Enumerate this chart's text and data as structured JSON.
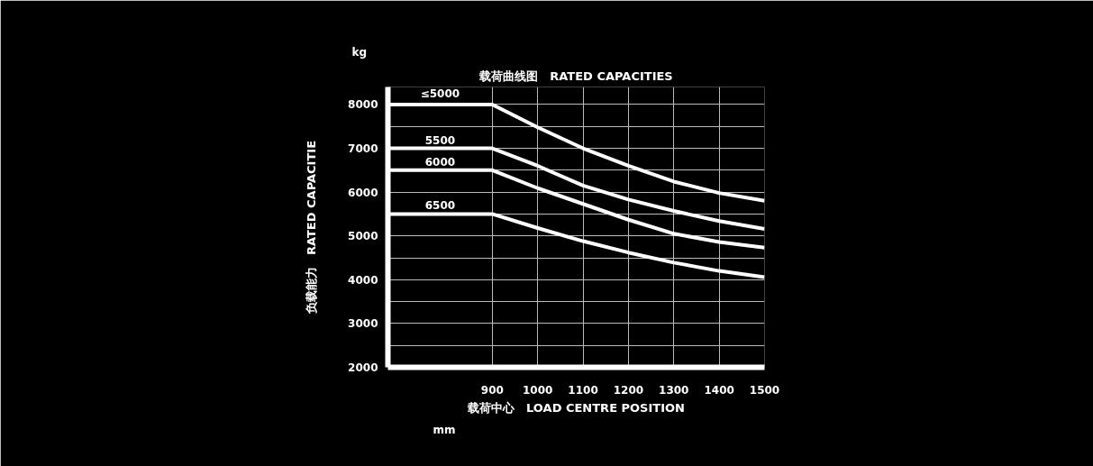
{
  "chart_data": {
    "type": "line",
    "title": "载荷曲线图　RATED CAPACITIES",
    "xlabel": "载荷中心　LOAD CENTRE POSITION",
    "ylabel": "负载能力　RATED CAPACITIE",
    "annotations": [
      "kg",
      "mm"
    ],
    "x": [
      670,
      900,
      1000,
      1100,
      1200,
      1300,
      1400,
      1500
    ],
    "series": [
      {
        "name": "≤5000",
        "color": "#ffffff",
        "values": [
          8000,
          8000,
          7480,
          7000,
          6600,
          6240,
          5980,
          5800
        ]
      },
      {
        "name": "5500",
        "color": "#ffffff",
        "values": [
          7000,
          7000,
          6600,
          6150,
          5830,
          5570,
          5340,
          5160
        ]
      },
      {
        "name": "6000",
        "color": "#ffffff",
        "values": [
          6500,
          6500,
          6090,
          5730,
          5370,
          5050,
          4860,
          4730
        ]
      },
      {
        "name": "6500",
        "color": "#ffffff",
        "values": [
          5500,
          5500,
          5180,
          4880,
          4620,
          4390,
          4200,
          4060
        ]
      }
    ],
    "xlim": [
      670,
      1500
    ],
    "xticks": [
      900,
      1000,
      1100,
      1200,
      1300,
      1400,
      1500
    ],
    "ylim": [
      2000,
      8400
    ],
    "yticks": [
      2000,
      {
        "value": 2500,
        "label": null
      },
      3000,
      {
        "value": 3500,
        "label": null
      },
      4000,
      {
        "value": 4500,
        "label": null
      },
      5000,
      {
        "value": 5500,
        "label": null
      },
      6000,
      {
        "value": 6500,
        "label": null
      },
      7000,
      {
        "value": 7500,
        "label": null
      },
      8000
    ],
    "grid": true,
    "marker": "none",
    "line_style": "solid"
  }
}
